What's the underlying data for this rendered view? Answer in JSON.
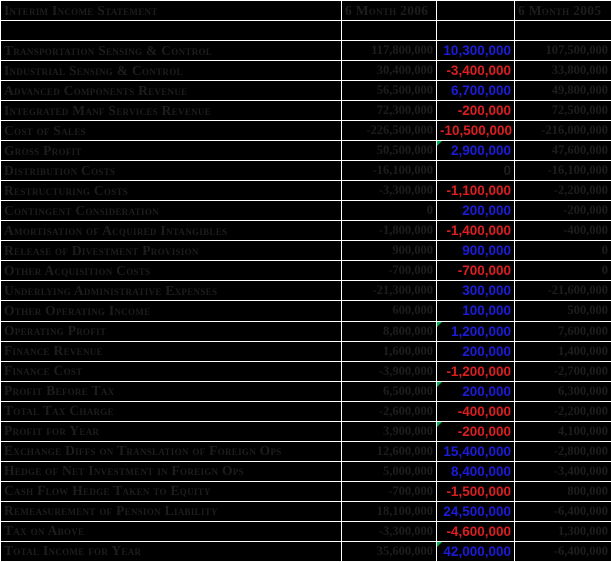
{
  "sheet": {
    "header": {
      "title": "Interim Income Statement",
      "col_2006": "6 Month 2006",
      "col_change": "",
      "col_2005": "6 Month 2005"
    },
    "colors": {
      "background": "#000000",
      "gridline": "#ffffff",
      "default_text": "#1d1d1d",
      "positive_change": "#1b1bd9",
      "negative_change": "#dc1e1e",
      "comment_indicator": "#00b050"
    },
    "rows": [
      {
        "label": "",
        "y2006": "",
        "change": "",
        "y2005": "",
        "change_color": "dark",
        "indicator": false
      },
      {
        "label": "Transportation Sensing & Control",
        "y2006": "117,800,000",
        "change": "10,300,000",
        "y2005": "107,500,000",
        "change_color": "blue",
        "indicator": false
      },
      {
        "label": "Industrial Sensing & Control",
        "y2006": "30,400,000",
        "change": "-3,400,000",
        "y2005": "33,800,000",
        "change_color": "red",
        "indicator": false
      },
      {
        "label": "Advanced Components Revenue",
        "y2006": "56,500,000",
        "change": "6,700,000",
        "y2005": "49,800,000",
        "change_color": "blue",
        "indicator": false
      },
      {
        "label": "Integrated Manf Services Revenue",
        "y2006": "72,300,000",
        "change": "-200,000",
        "y2005": "72,500,000",
        "change_color": "red",
        "indicator": false
      },
      {
        "label": "Cost of Sales",
        "y2006": "-226,500,000",
        "change": "-10,500,000",
        "y2005": "-216,000,000",
        "change_color": "red",
        "indicator": false
      },
      {
        "label": "Gross Profit",
        "y2006": "50,500,000",
        "change": "2,900,000",
        "y2005": "47,600,000",
        "change_color": "blue",
        "indicator": true
      },
      {
        "label": "Distribution Costs",
        "y2006": "-16,100,000",
        "change": "0",
        "y2005": "-16,100,000",
        "change_color": "dark",
        "indicator": false
      },
      {
        "label": "Restructuring Costs",
        "y2006": "-3,300,000",
        "change": "-1,100,000",
        "y2005": "-2,200,000",
        "change_color": "red",
        "indicator": false
      },
      {
        "label": "Contingent Consideration",
        "y2006": "0",
        "change": "200,000",
        "y2005": "-200,000",
        "change_color": "blue",
        "indicator": false
      },
      {
        "label": "Amortisation of Acquired Intangibles",
        "y2006": "-1,800,000",
        "change": "-1,400,000",
        "y2005": "-400,000",
        "change_color": "red",
        "indicator": false
      },
      {
        "label": "Release of Divestment Provision",
        "y2006": "900,000",
        "change": "900,000",
        "y2005": "0",
        "change_color": "blue",
        "indicator": false
      },
      {
        "label": "Other Acquisition Costs",
        "y2006": "-700,000",
        "change": "-700,000",
        "y2005": "0",
        "change_color": "red",
        "indicator": false
      },
      {
        "label": "Underlying Administrative Expenses",
        "y2006": "-21,300,000",
        "change": "300,000",
        "y2005": "-21,600,000",
        "change_color": "blue",
        "indicator": false
      },
      {
        "label": "Other Operating Income",
        "y2006": "600,000",
        "change": "100,000",
        "y2005": "500,000",
        "change_color": "blue",
        "indicator": false
      },
      {
        "label": "Operating Profit",
        "y2006": "8,800,000",
        "change": "1,200,000",
        "y2005": "7,600,000",
        "change_color": "blue",
        "indicator": true
      },
      {
        "label": "Finance Revenue",
        "y2006": "1,600,000",
        "change": "200,000",
        "y2005": "1,400,000",
        "change_color": "blue",
        "indicator": false
      },
      {
        "label": "Finance Cost",
        "y2006": "-3,900,000",
        "change": "-1,200,000",
        "y2005": "-2,700,000",
        "change_color": "red",
        "indicator": false
      },
      {
        "label": "Profit Before Tax",
        "y2006": "6,500,000",
        "change": "200,000",
        "y2005": "6,300,000",
        "change_color": "blue",
        "indicator": true
      },
      {
        "label": "Total Tax Charge",
        "y2006": "-2,600,000",
        "change": "-400,000",
        "y2005": "-2,200,000",
        "change_color": "red",
        "indicator": false
      },
      {
        "label": "Profit for Year",
        "y2006": "3,900,000",
        "change": "-200,000",
        "y2005": "4,100,000",
        "change_color": "red",
        "indicator": true
      },
      {
        "label": "Exchange Diffs on Translation of Foreign Ops",
        "y2006": "12,600,000",
        "change": "15,400,000",
        "y2005": "-2,800,000",
        "change_color": "blue",
        "indicator": false
      },
      {
        "label": "Hedge of Net Investment in Foreign Ops",
        "y2006": "5,000,000",
        "change": "8,400,000",
        "y2005": "-3,400,000",
        "change_color": "blue",
        "indicator": false
      },
      {
        "label": "Cash Flow Hedge Taken to Equity",
        "y2006": "-700,000",
        "change": "-1,500,000",
        "y2005": "800,000",
        "change_color": "red",
        "indicator": false
      },
      {
        "label": "Remeasurement of Pension Liability",
        "y2006": "18,100,000",
        "change": "24,500,000",
        "y2005": "-6,400,000",
        "change_color": "blue",
        "indicator": false
      },
      {
        "label": "Tax on Above",
        "y2006": "-3,300,000",
        "change": "-4,600,000",
        "y2005": "1,300,000",
        "change_color": "red",
        "indicator": false
      },
      {
        "label": "Total Income for Year",
        "y2006": "35,600,000",
        "change": "42,000,000",
        "y2005": "-6,400,000",
        "change_color": "blue",
        "indicator": true
      }
    ]
  }
}
